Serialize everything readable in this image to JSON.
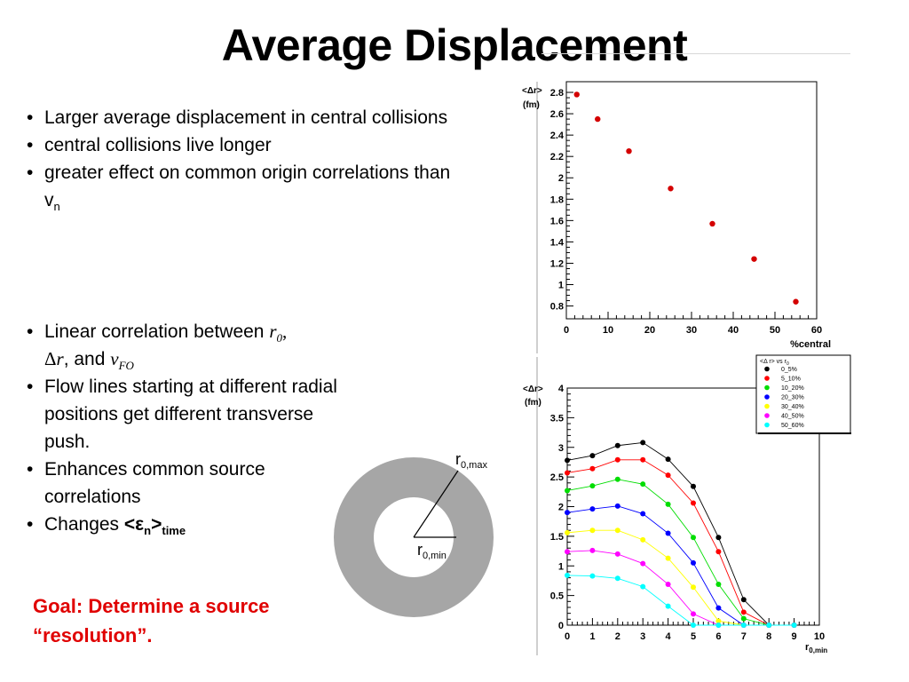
{
  "slide": {
    "title": "Average Displacement",
    "bullets_top": [
      {
        "text": "Larger average displacement in central collisions"
      },
      {
        "text": "central collisions live longer"
      },
      {
        "text": "greater effect on common origin correlations than v",
        "sub": "n"
      }
    ],
    "bullets_bottom": {
      "b1": {
        "a": "Linear correlation between ",
        "r0": "r",
        "r0_sub": "0",
        "comma": ",",
        "delta": "Δ",
        "r": "r",
        "and": ", and ",
        "v": "v",
        "v_sub": "FO"
      },
      "b2": "Flow lines starting at different radial positions get different transverse push.",
      "b3": "Enhances common source correlations",
      "b4": {
        "a": "Changes ",
        "b": "<ε",
        "b_sub": "n",
        "c": ">",
        "d_sub": "time"
      }
    },
    "goal": "Goal: Determine a source “resolution”."
  },
  "ring_diagram": {
    "outer_label": "r",
    "outer_sub": "0,max",
    "inner_label": "r",
    "inner_sub": "0,min",
    "ring_color": "#a6a6a6"
  },
  "chart_data": [
    {
      "type": "scatter",
      "ylabel_line1": "<Δr>",
      "ylabel_line2": "(fm)",
      "xlabel": "%central",
      "xlim": [
        0,
        60
      ],
      "ylim": [
        0.68,
        2.9
      ],
      "xticks": [
        0,
        10,
        20,
        30,
        40,
        50,
        60
      ],
      "yticks": [
        0.8,
        1,
        1.2,
        1.4,
        1.6,
        1.8,
        2,
        2.2,
        2.4,
        2.6,
        2.8
      ],
      "color": "#d40000",
      "points": [
        {
          "x": 2.5,
          "y": 2.78
        },
        {
          "x": 7.5,
          "y": 2.55
        },
        {
          "x": 15,
          "y": 2.25
        },
        {
          "x": 25,
          "y": 1.9
        },
        {
          "x": 35,
          "y": 1.57
        },
        {
          "x": 45,
          "y": 1.24
        },
        {
          "x": 55,
          "y": 0.84
        }
      ]
    },
    {
      "type": "line",
      "ylabel_line1": "<Δr>",
      "ylabel_line2": "(fm)",
      "xlabel": "r",
      "xlabel_sub": "0,min",
      "xlim": [
        0,
        10
      ],
      "ylim": [
        0,
        4
      ],
      "xticks": [
        0,
        1,
        2,
        3,
        4,
        5,
        6,
        7,
        8,
        9,
        10
      ],
      "yticks": [
        0,
        0.5,
        1,
        1.5,
        2,
        2.5,
        3,
        3.5,
        4
      ],
      "legend_title": "<Δ r> vs r",
      "legend_title_sub": "0",
      "legend_position": "top-right",
      "x": [
        0,
        1,
        2,
        3,
        4,
        5,
        6,
        7,
        8,
        9
      ],
      "series": [
        {
          "name": "0_5%",
          "color": "#000000",
          "values": [
            2.78,
            2.86,
            3.03,
            3.08,
            2.8,
            2.34,
            1.48,
            0.43,
            0.0,
            0.0
          ]
        },
        {
          "name": "5_10%",
          "color": "#ff0000",
          "values": [
            2.57,
            2.64,
            2.79,
            2.79,
            2.53,
            2.06,
            1.24,
            0.22,
            0.0,
            0.0
          ]
        },
        {
          "name": "10_20%",
          "color": "#00dd00",
          "values": [
            2.27,
            2.35,
            2.46,
            2.38,
            2.04,
            1.48,
            0.69,
            0.11,
            0.0,
            0.0
          ]
        },
        {
          "name": "20_30%",
          "color": "#0000ff",
          "values": [
            1.9,
            1.96,
            2.01,
            1.88,
            1.55,
            1.05,
            0.29,
            0.0,
            0.0,
            0.0
          ]
        },
        {
          "name": "30_40%",
          "color": "#ffff00",
          "values": [
            1.56,
            1.6,
            1.6,
            1.44,
            1.13,
            0.64,
            0.07,
            0.0,
            0.0,
            0.0
          ]
        },
        {
          "name": "40_50%",
          "color": "#ff00ff",
          "values": [
            1.24,
            1.26,
            1.2,
            1.04,
            0.69,
            0.19,
            0.0,
            0.0,
            0.0,
            0.0
          ]
        },
        {
          "name": "50_60%",
          "color": "#00ffff",
          "values": [
            0.84,
            0.83,
            0.79,
            0.65,
            0.32,
            0.0,
            0.0,
            0.0,
            0.0,
            0.0
          ]
        }
      ]
    }
  ]
}
